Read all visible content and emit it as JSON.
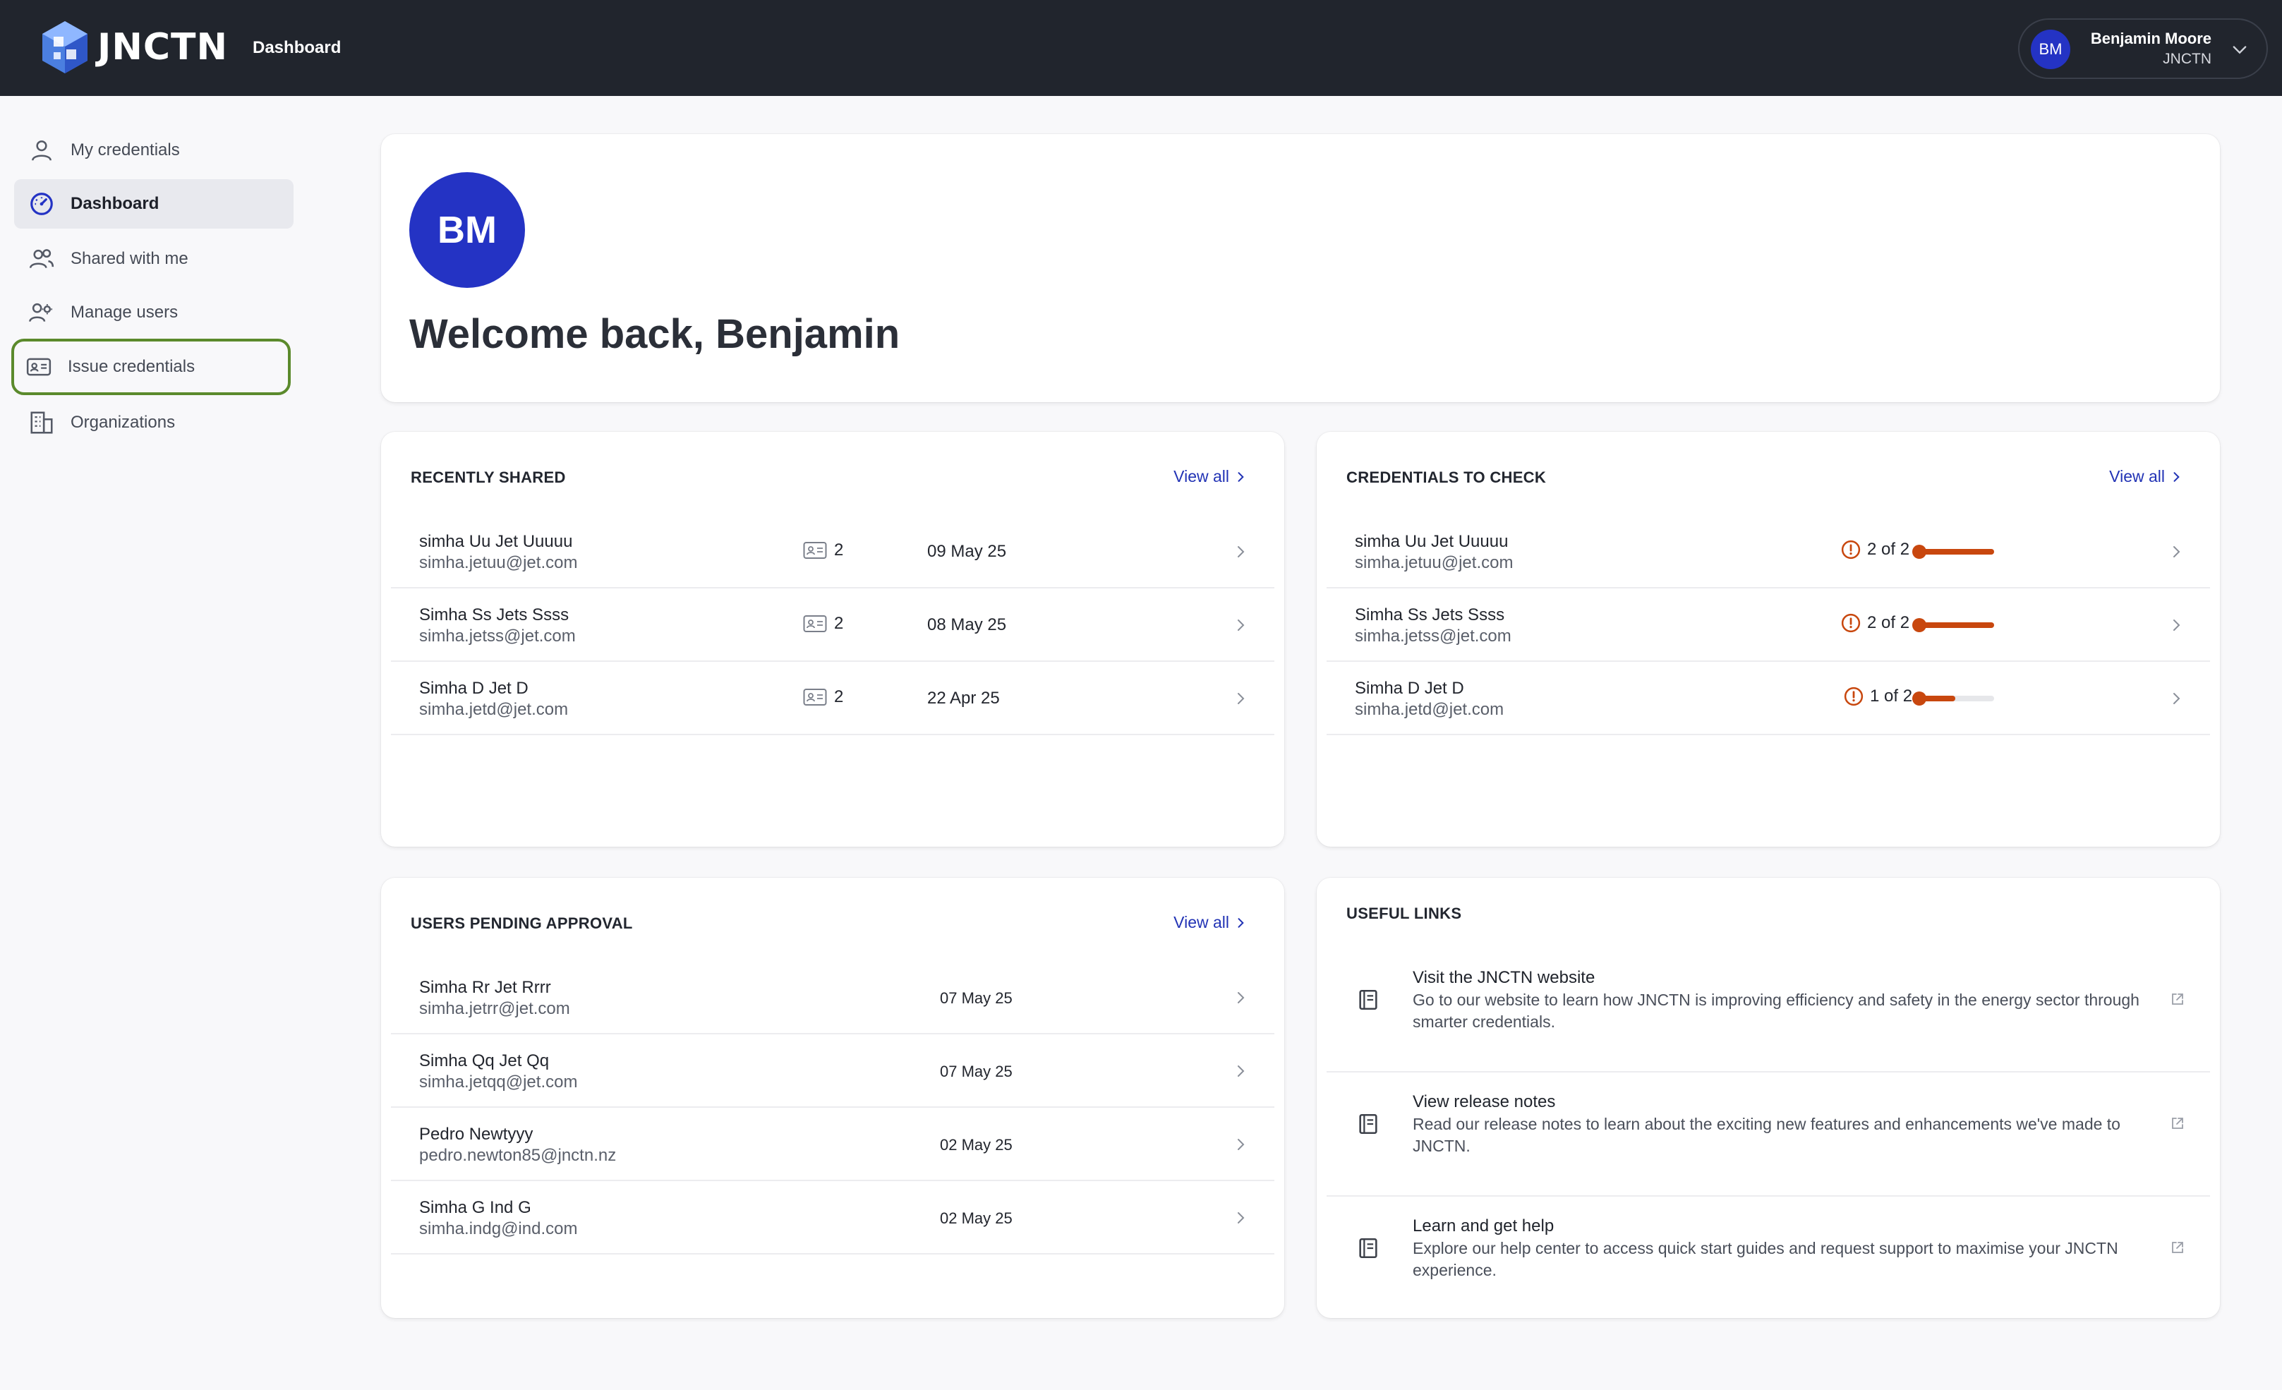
{
  "app": {
    "brand": "JNCTN",
    "page_title": "Dashboard",
    "user": {
      "initials": "BM",
      "name": "Benjamin Moore",
      "org": "JNCTN"
    }
  },
  "sidebar": {
    "items": [
      {
        "label": "My credentials",
        "icon": "person-icon"
      },
      {
        "label": "Dashboard",
        "icon": "dashboard-gauge-icon",
        "active": true
      },
      {
        "label": "Shared with me",
        "icon": "people-icon"
      },
      {
        "label": "Manage users",
        "icon": "users-gear-icon"
      },
      {
        "label": "Issue credentials",
        "icon": "id-card-icon",
        "highlighted": true
      },
      {
        "label": "Organizations",
        "icon": "building-icon"
      }
    ]
  },
  "welcome": {
    "initials": "BM",
    "text": "Welcome back, Benjamin"
  },
  "recently_shared": {
    "title": "RECENTLY SHARED",
    "view_all": "View all",
    "rows": [
      {
        "name": "simha Uu Jet Uuuuu",
        "email": "simha.jetuu@jet.com",
        "count": "2",
        "date": "09 May 25"
      },
      {
        "name": "Simha Ss Jets Ssss",
        "email": "simha.jetss@jet.com",
        "count": "2",
        "date": "08 May 25"
      },
      {
        "name": "Simha D Jet D",
        "email": "simha.jetd@jet.com",
        "count": "2",
        "date": "22 Apr 25"
      }
    ]
  },
  "credentials_to_check": {
    "title": "CREDENTIALS TO CHECK",
    "view_all": "View all",
    "rows": [
      {
        "name": "simha Uu Jet Uuuuu",
        "email": "simha.jetuu@jet.com",
        "status": "2 of 2",
        "fraction": 1.0
      },
      {
        "name": "Simha Ss Jets Ssss",
        "email": "simha.jetss@jet.com",
        "status": "2 of 2",
        "fraction": 1.0
      },
      {
        "name": "Simha D Jet D",
        "email": "simha.jetd@jet.com",
        "status": "1 of 2",
        "fraction": 0.5
      }
    ]
  },
  "users_pending": {
    "title": "USERS PENDING APPROVAL",
    "view_all": "View all",
    "rows": [
      {
        "name": "Simha Rr Jet Rrrr",
        "email": "simha.jetrr@jet.com",
        "date": "07 May 25"
      },
      {
        "name": "Simha Qq Jet Qq",
        "email": "simha.jetqq@jet.com",
        "date": "07 May 25"
      },
      {
        "name": "Pedro Newtyyy",
        "email": "pedro.newton85@jnctn.nz",
        "date": "02 May 25"
      },
      {
        "name": "Simha G Ind G",
        "email": "simha.indg@ind.com",
        "date": "02 May 25"
      }
    ]
  },
  "useful_links": {
    "title": "USEFUL LINKS",
    "links": [
      {
        "title": "Visit the JNCTN website",
        "desc": "Go to our website to learn how JNCTN is improving efficiency and safety in the energy sector through smarter credentials."
      },
      {
        "title": "View release notes",
        "desc": "Read our release notes to learn about the exciting new features and enhancements we've made to JNCTN."
      },
      {
        "title": "Learn and get help",
        "desc": "Explore our help center to access quick start guides and request support to maximise your JNCTN experience."
      }
    ]
  },
  "colors": {
    "accent": "#2433c4",
    "warning": "#c8470e",
    "topbar": "#21252d",
    "highlight": "#5b8a2c"
  }
}
